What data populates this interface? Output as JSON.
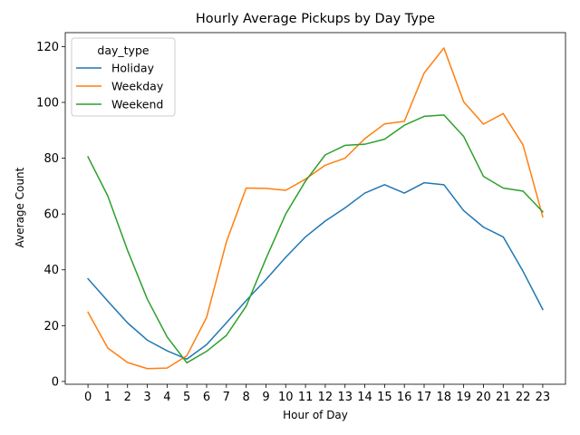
{
  "chart_data": {
    "type": "line",
    "title": "Hourly Average Pickups by Day Type",
    "xlabel": "Hour of Day",
    "ylabel": "Average Count",
    "x": [
      0,
      1,
      2,
      3,
      4,
      5,
      6,
      7,
      8,
      9,
      10,
      11,
      12,
      13,
      14,
      15,
      16,
      17,
      18,
      19,
      20,
      21,
      22,
      23
    ],
    "xlim": [
      -1.15,
      24.15
    ],
    "ylim": [
      -1,
      125
    ],
    "yticks": [
      0,
      20,
      40,
      60,
      80,
      100,
      120
    ],
    "grid": false,
    "legend": {
      "title": "day_type",
      "placement": "top-left"
    },
    "series": [
      {
        "name": "Holiday",
        "color": "#1f77b4",
        "values": [
          36.8,
          28.8,
          21.0,
          14.8,
          11.0,
          8.0,
          13.2,
          21.0,
          29.0,
          36.5,
          44.5,
          51.8,
          57.5,
          62.2,
          67.5,
          70.5,
          67.5,
          71.2,
          70.5,
          61.2,
          55.3,
          51.8,
          39.5,
          25.8
        ]
      },
      {
        "name": "Weekday",
        "color": "#ff7f0e",
        "values": [
          24.8,
          12.0,
          6.8,
          4.6,
          4.8,
          9.2,
          23.0,
          50.0,
          69.3,
          69.2,
          68.5,
          72.5,
          77.5,
          80.0,
          87.0,
          92.3,
          93.2,
          110.5,
          119.5,
          100.2,
          92.2,
          96.0,
          84.8,
          59.0
        ]
      },
      {
        "name": "Weekend",
        "color": "#2ca02c",
        "values": [
          80.5,
          66.5,
          47.0,
          29.5,
          16.0,
          6.7,
          10.8,
          16.5,
          27.0,
          44.0,
          60.0,
          71.8,
          81.2,
          84.6,
          85.0,
          86.8,
          91.8,
          95.0,
          95.5,
          87.8,
          73.5,
          69.3,
          68.2,
          60.8
        ]
      }
    ]
  }
}
